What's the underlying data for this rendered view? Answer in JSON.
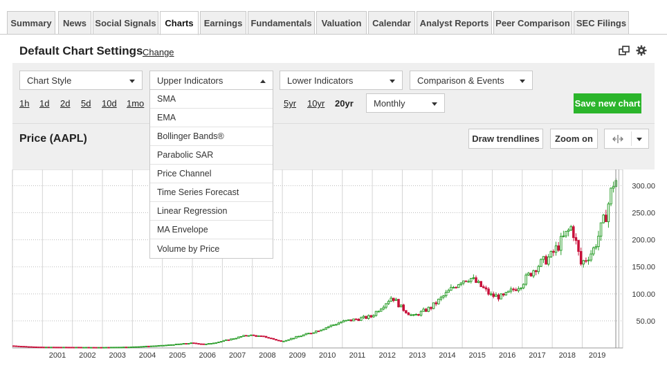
{
  "tabs": [
    {
      "label": "Summary",
      "active": false
    },
    {
      "label": "News",
      "active": false
    },
    {
      "label": "Social Signals",
      "active": false
    },
    {
      "label": "Charts",
      "active": true
    },
    {
      "label": "Earnings",
      "active": false
    },
    {
      "label": "Fundamentals",
      "active": false
    },
    {
      "label": "Valuation",
      "active": false
    },
    {
      "label": "Calendar",
      "active": false
    },
    {
      "label": "Analyst Reports",
      "active": false
    },
    {
      "label": "Peer Comparison",
      "active": false
    },
    {
      "label": "SEC Filings",
      "active": false
    }
  ],
  "header": {
    "title": "Default Chart Settings",
    "change_label": "Change",
    "icons": [
      "popout-icon",
      "gear-icon"
    ]
  },
  "controls": {
    "chart_style": "Chart Style",
    "upper_indicators": "Upper Indicators",
    "lower_indicators": "Lower Indicators",
    "comparison_events": "Comparison & Events",
    "interval": "Monthly",
    "save_label": "Save new chart"
  },
  "ranges": {
    "left": [
      "1h",
      "1d",
      "2d",
      "5d",
      "10d",
      "1mo"
    ],
    "right": [
      "5yr",
      "10yr",
      "20yr"
    ],
    "selected": "20yr"
  },
  "upper_menu": [
    "SMA",
    "EMA",
    "Bollinger Bands®",
    "Parabolic SAR",
    "Price Channel",
    "Time Series Forecast",
    "Linear Regression",
    "MA Envelope",
    "Volume by Price"
  ],
  "chart_header": {
    "title": "Price (AAPL)",
    "draw_trendlines": "Draw trendlines",
    "zoom_on": "Zoom on"
  },
  "colors": {
    "up": "#2a9d2a",
    "down": "#c8103a",
    "accent": "#2bb52b",
    "grid": "#c8c8c8"
  },
  "chart_data": {
    "type": "candlestick",
    "x_tick_labels": [
      "2001",
      "2002",
      "2003",
      "2004",
      "2005",
      "2006",
      "2007",
      "2008",
      "2009",
      "2010",
      "2011",
      "2012",
      "2013",
      "2014",
      "2015",
      "2016",
      "2017",
      "2018",
      "2019"
    ],
    "y_tick_labels": [
      "300.00",
      "250.00",
      "200.00",
      "150.00",
      "100.00",
      "50.00"
    ],
    "y_ticks": [
      300,
      250,
      200,
      150,
      100,
      50
    ],
    "ylim": [
      0,
      330
    ],
    "xlim": [
      2000.0,
      2020.35
    ],
    "interval": "monthly",
    "price_anchors": [
      [
        2000.0,
        4
      ],
      [
        2000.5,
        2.5
      ],
      [
        2001.0,
        1.5
      ],
      [
        2002.0,
        1.3
      ],
      [
        2003.0,
        1.0
      ],
      [
        2004.0,
        1.8
      ],
      [
        2005.0,
        4.5
      ],
      [
        2006.0,
        9
      ],
      [
        2006.5,
        7
      ],
      [
        2007.0,
        12
      ],
      [
        2007.9,
        24
      ],
      [
        2008.5,
        20
      ],
      [
        2009.0,
        12
      ],
      [
        2009.5,
        20
      ],
      [
        2010.0,
        28
      ],
      [
        2011.0,
        48
      ],
      [
        2012.0,
        58
      ],
      [
        2012.7,
        95
      ],
      [
        2013.0,
        75
      ],
      [
        2013.4,
        58
      ],
      [
        2014.0,
        75
      ],
      [
        2015.0,
        125
      ],
      [
        2015.3,
        130
      ],
      [
        2015.7,
        112
      ],
      [
        2016.0,
        97
      ],
      [
        2016.4,
        94
      ],
      [
        2017.0,
        118
      ],
      [
        2017.5,
        150
      ],
      [
        2018.0,
        170
      ],
      [
        2018.7,
        225
      ],
      [
        2019.0,
        155
      ],
      [
        2019.4,
        180
      ],
      [
        2019.8,
        240
      ],
      [
        2020.1,
        310
      ]
    ]
  }
}
